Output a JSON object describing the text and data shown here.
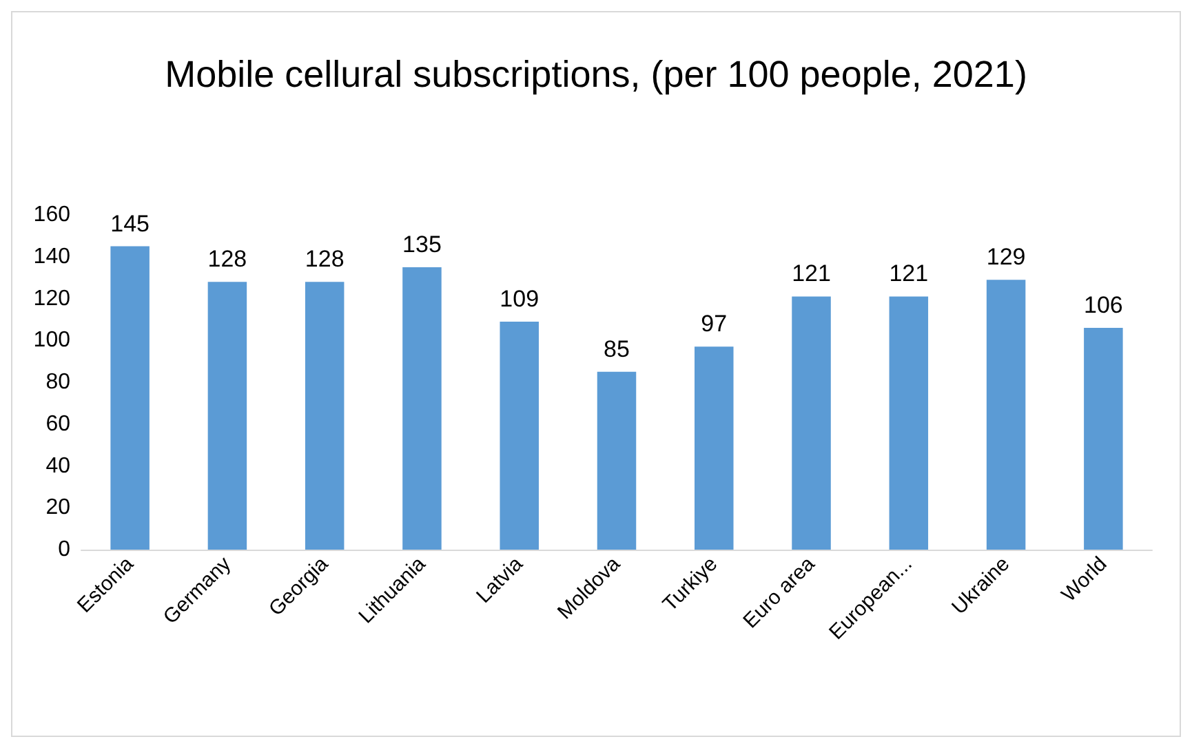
{
  "chart_data": {
    "type": "bar",
    "title": "Mobile cellural subscriptions, (per 100 people, 2021)",
    "categories": [
      "Estonia",
      "Germany",
      "Georgia",
      "Lithuania",
      "Latvia",
      "Moldova",
      "Turkiye",
      "Euro area",
      "European...",
      "Ukraine",
      "World"
    ],
    "values": [
      145,
      128,
      128,
      135,
      109,
      85,
      97,
      121,
      121,
      129,
      106
    ],
    "color": "#5b9bd5",
    "ylim": [
      0,
      160
    ],
    "yticks": [
      0,
      20,
      40,
      60,
      80,
      100,
      120,
      140,
      160
    ],
    "grid": false,
    "data_labels": true
  }
}
